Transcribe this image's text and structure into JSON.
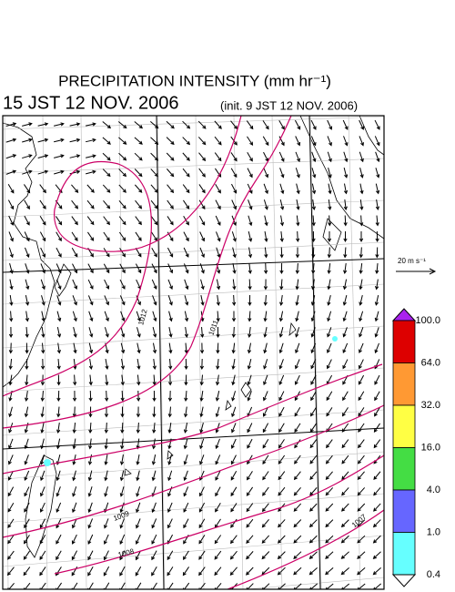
{
  "title": "PRECIPITATION INTENSITY (mm hr⁻¹)",
  "valid_time": "15 JST 12 NOV. 2006",
  "init_time": "(init. 9 JST 12 NOV. 2006)",
  "wind_scale": "20 m s⁻¹",
  "isobar_labels": [
    "1012",
    "1011",
    "1009",
    "1008",
    "1007"
  ],
  "colorbar": {
    "ticks": [
      {
        "value": 100,
        "label": "100.0"
      },
      {
        "value": 64,
        "label": "64.0"
      },
      {
        "value": 32,
        "label": "32.0"
      },
      {
        "value": 16,
        "label": "16.0"
      },
      {
        "value": 4,
        "label": "4.0"
      },
      {
        "value": 1,
        "label": "1.0"
      },
      {
        "value": 0.4,
        "label": "0.4"
      }
    ],
    "colors": [
      "#dd0000",
      "#ff9933",
      "#ffff44",
      "#44dd44",
      "#6666ff",
      "#66ffff"
    ],
    "over_color": "#aa22ee",
    "under_color": "#ffffff"
  }
}
